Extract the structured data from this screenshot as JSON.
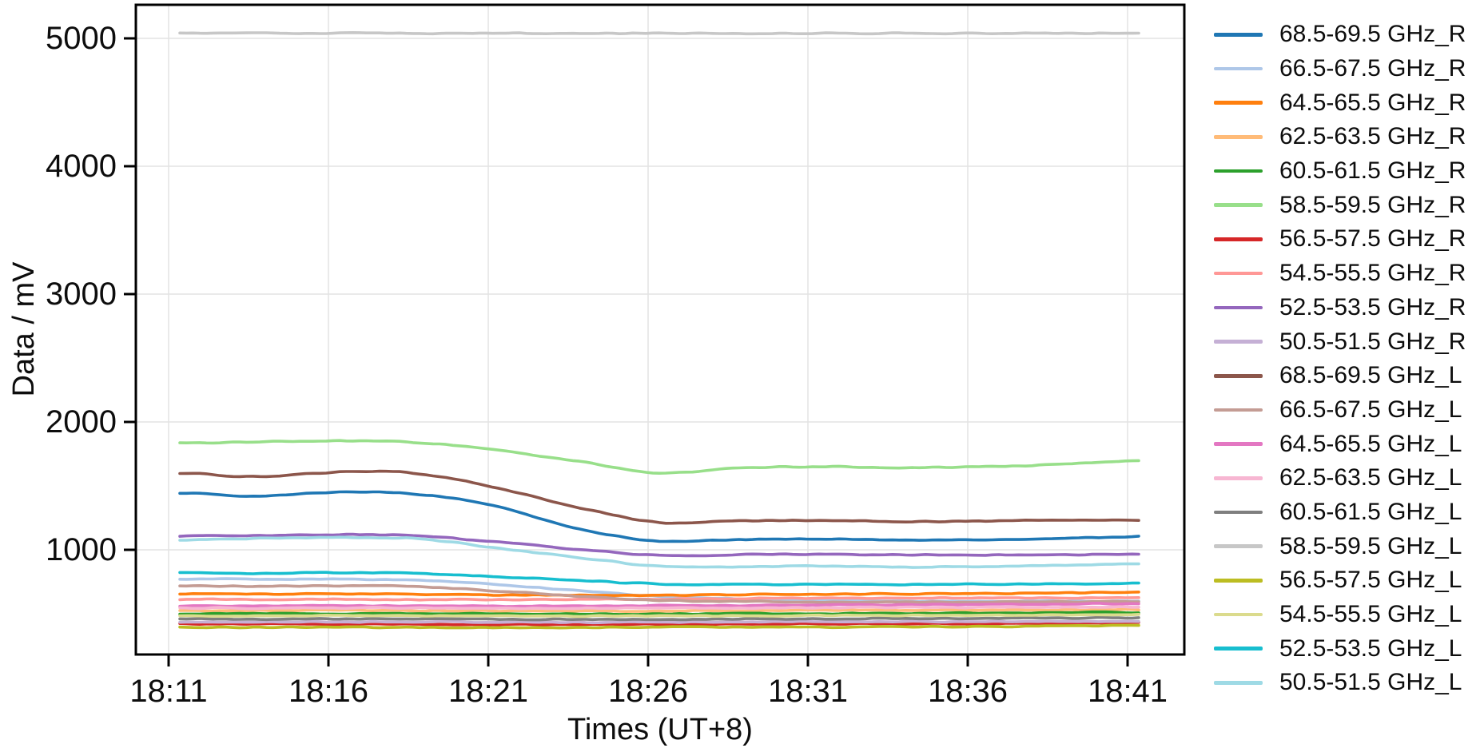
{
  "chart_data": {
    "type": "line",
    "title": "",
    "xlabel": "Times (UT+8)",
    "ylabel": "Data / mV",
    "grid": true,
    "legend_position": "right-outside",
    "background_color": "#ffffff",
    "gridline_color": "#e3e3e3",
    "spine_color": "#000000",
    "ylim": [
      180,
      5270
    ],
    "xlim_minutes_from_18_11": [
      -1.03,
      31.38
    ],
    "y_ticks": [
      {
        "v": 1000,
        "label": "1000"
      },
      {
        "v": 2000,
        "label": "2000"
      },
      {
        "v": 3000,
        "label": "3000"
      },
      {
        "v": 4000,
        "label": "4000"
      },
      {
        "v": 5000,
        "label": "5000"
      }
    ],
    "x_ticks": [
      {
        "t": 0,
        "label": "18:11"
      },
      {
        "t": 5,
        "label": "18:16"
      },
      {
        "t": 10,
        "label": "18:21"
      },
      {
        "t": 15,
        "label": "18:26"
      },
      {
        "t": 20,
        "label": "18:31"
      },
      {
        "t": 25,
        "label": "18:36"
      },
      {
        "t": 30,
        "label": "18:41"
      }
    ],
    "t_minutes": [
      0.35,
      2.85,
      5.35,
      7.85,
      10.35,
      12.85,
      15.35,
      17.85,
      20.35,
      22.85,
      25.35,
      27.85,
      30.35
    ],
    "series": [
      {
        "name": "68.5-69.5 GHz_R",
        "color": "#1f77b4",
        "values": [
          1445,
          1420,
          1452,
          1435,
          1335,
          1160,
          1068,
          1080,
          1086,
          1076,
          1080,
          1088,
          1105
        ]
      },
      {
        "name": "66.5-67.5 GHz_R",
        "color": "#aec7e8",
        "values": [
          770,
          769,
          772,
          763,
          728,
          680,
          634,
          614,
          605,
          600,
          598,
          598,
          600
        ]
      },
      {
        "name": "64.5-65.5 GHz_R",
        "color": "#ff7f0e",
        "values": [
          655,
          654,
          656,
          653,
          648,
          645,
          646,
          650,
          654,
          656,
          658,
          662,
          668
        ]
      },
      {
        "name": "62.5-63.5 GHz_R",
        "color": "#ffbb78",
        "values": [
          525,
          524,
          526,
          524,
          522,
          521,
          522,
          524,
          526,
          527,
          528,
          530,
          532
        ]
      },
      {
        "name": "60.5-61.5 GHz_R",
        "color": "#2ca02c",
        "values": [
          500,
          500,
          501,
          500,
          498,
          497,
          498,
          500,
          502,
          503,
          505,
          508,
          512
        ]
      },
      {
        "name": "58.5-59.5 GHz_R",
        "color": "#98df8a",
        "values": [
          1837,
          1846,
          1853,
          1838,
          1775,
          1690,
          1600,
          1640,
          1650,
          1643,
          1650,
          1667,
          1694
        ]
      },
      {
        "name": "56.5-57.5 GHz_R",
        "color": "#d62728",
        "values": [
          419,
          419,
          420,
          419,
          417,
          416,
          417,
          419,
          421,
          422,
          424,
          427,
          431
        ]
      },
      {
        "name": "54.5-55.5 GHz_R",
        "color": "#ff9896",
        "values": [
          612,
          611,
          613,
          611,
          610,
          612,
          615,
          618,
          621,
          622,
          623,
          624,
          625
        ]
      },
      {
        "name": "52.5-53.5 GHz_R",
        "color": "#9467bd",
        "values": [
          1108,
          1112,
          1119,
          1110,
          1060,
          1005,
          956,
          962,
          967,
          961,
          960,
          962,
          966
        ]
      },
      {
        "name": "50.5-51.5 GHz_R",
        "color": "#c5b0d5",
        "values": [
          436,
          436,
          437,
          436,
          434,
          433,
          434,
          436,
          438,
          438,
          439,
          440,
          442
        ]
      },
      {
        "name": "68.5-69.5 GHz_L",
        "color": "#8c564b",
        "values": [
          1600,
          1573,
          1608,
          1596,
          1480,
          1330,
          1215,
          1226,
          1230,
          1220,
          1224,
          1231,
          1231
        ]
      },
      {
        "name": "66.5-67.5 GHz_L",
        "color": "#c49c94",
        "values": [
          719,
          715,
          720,
          710,
          676,
          636,
          604,
          596,
          593,
          591,
          592,
          593,
          595
        ]
      },
      {
        "name": "64.5-65.5 GHz_L",
        "color": "#e377c2",
        "values": [
          562,
          561,
          563,
          561,
          559,
          560,
          562,
          565,
          568,
          570,
          573,
          577,
          581
        ]
      },
      {
        "name": "62.5-63.5 GHz_L",
        "color": "#f7b6d2",
        "values": [
          545,
          544,
          546,
          544,
          542,
          542,
          544,
          546,
          548,
          549,
          550,
          551,
          553
        ]
      },
      {
        "name": "60.5-61.5 GHz_L",
        "color": "#7f7f7f",
        "values": [
          458,
          458,
          459,
          458,
          456,
          455,
          456,
          458,
          460,
          462,
          464,
          466,
          469
        ]
      },
      {
        "name": "58.5-59.5 GHz_L",
        "color": "#c7c7c7",
        "values": [
          5040,
          5040,
          5040,
          5040,
          5040,
          5040,
          5040,
          5040,
          5040,
          5040,
          5040,
          5040,
          5040
        ]
      },
      {
        "name": "56.5-57.5 GHz_L",
        "color": "#bcbd22",
        "values": [
          394,
          394,
          395,
          394,
          392,
          392,
          393,
          395,
          397,
          398,
          400,
          403,
          406
        ]
      },
      {
        "name": "54.5-55.5 GHz_L",
        "color": "#dbdb8d",
        "values": [
          485,
          484,
          486,
          485,
          483,
          482,
          483,
          485,
          487,
          488,
          489,
          490,
          492
        ]
      },
      {
        "name": "52.5-53.5 GHz_L",
        "color": "#17becf",
        "values": [
          820,
          817,
          822,
          814,
          788,
          760,
          733,
          728,
          730,
          727,
          730,
          734,
          737
        ]
      },
      {
        "name": "50.5-51.5 GHz_L",
        "color": "#9edae5",
        "values": [
          1078,
          1088,
          1097,
          1086,
          1012,
          938,
          872,
          868,
          872,
          866,
          870,
          880,
          888
        ]
      }
    ]
  }
}
